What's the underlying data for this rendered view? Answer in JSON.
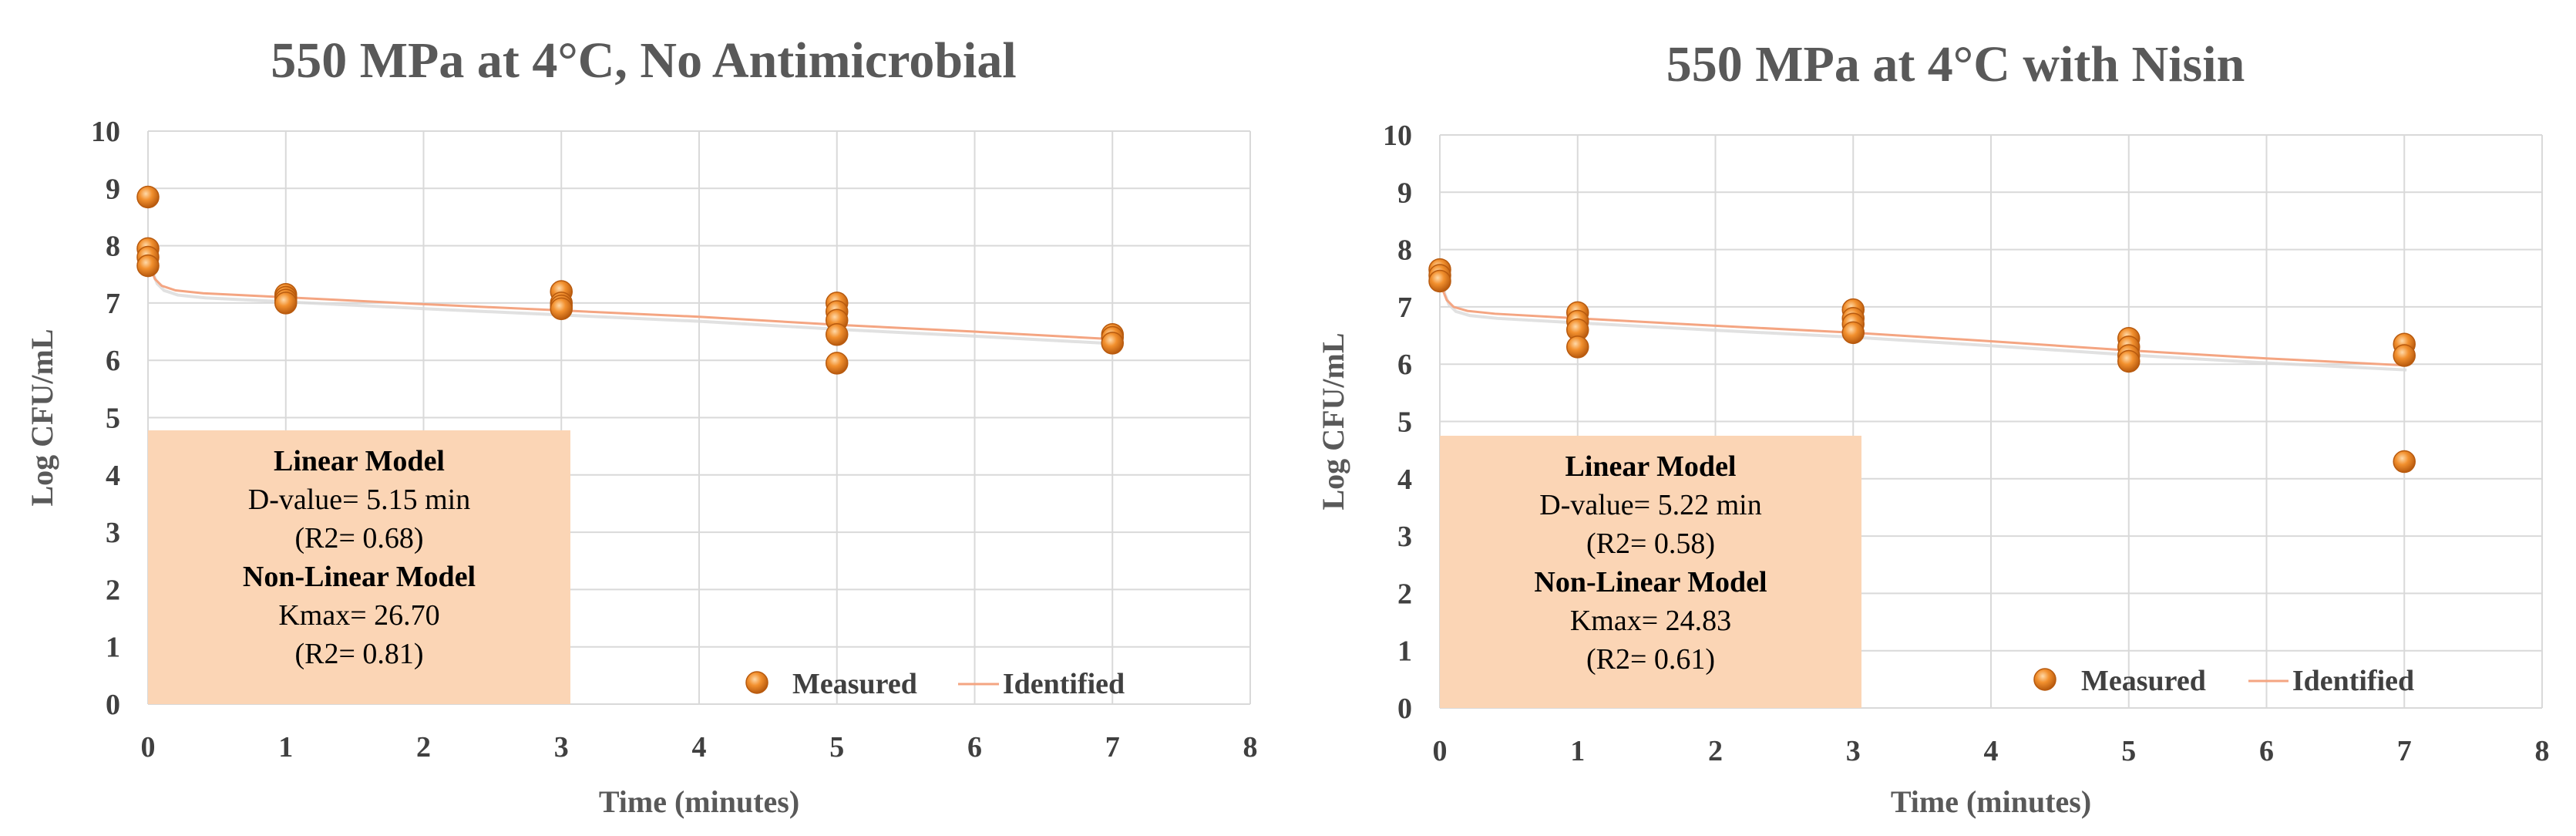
{
  "colors": {
    "marker_fill": "#E07A1E",
    "marker_stroke": "#B85A0E",
    "line": "#F4A582",
    "line_shadow": "#D9D9D9",
    "grid": "#D9D9D9",
    "annotation_bg": "#FBD5B5",
    "text": "#404040"
  },
  "chart_data": [
    {
      "type": "scatter",
      "title": "550 MPa at 4°C, No Antimicrobial",
      "xlabel": "Time (minutes)",
      "ylabel": "Log CFU/mL",
      "xlim": [
        0,
        8
      ],
      "ylim": [
        0,
        10
      ],
      "xticks": [
        0,
        1,
        2,
        3,
        4,
        5,
        6,
        7,
        8
      ],
      "yticks": [
        0,
        1,
        2,
        3,
        4,
        5,
        6,
        7,
        8,
        9,
        10
      ],
      "grid": true,
      "legend_position": "bottom-right",
      "series": [
        {
          "name": "Measured",
          "kind": "points",
          "x": [
            0,
            0,
            0,
            0,
            1,
            1,
            1,
            1,
            3,
            3,
            3,
            3,
            5,
            5,
            5,
            5,
            5,
            7,
            7,
            7
          ],
          "y": [
            8.85,
            7.95,
            7.8,
            7.65,
            7.15,
            7.1,
            7.05,
            7.0,
            7.2,
            7.0,
            6.95,
            6.9,
            7.0,
            6.85,
            6.7,
            6.45,
            5.95,
            6.45,
            6.4,
            6.3
          ]
        },
        {
          "name": "Identified",
          "kind": "line",
          "x": [
            0,
            0.02,
            0.05,
            0.1,
            0.2,
            0.4,
            1,
            2,
            3,
            4,
            5,
            6,
            7
          ],
          "y": [
            7.85,
            7.6,
            7.42,
            7.3,
            7.22,
            7.17,
            7.1,
            6.98,
            6.87,
            6.76,
            6.62,
            6.5,
            6.37
          ]
        }
      ],
      "annotation": {
        "lines": [
          {
            "text": "Linear Model",
            "bold": true
          },
          {
            "text": "D-value=  5.15 min",
            "bold": false
          },
          {
            "text": "(R2= 0.68)",
            "bold": false
          },
          {
            "text": "Non-Linear Model",
            "bold": true
          },
          {
            "text": "Kmax= 26.70",
            "bold": false
          },
          {
            "text": "(R2= 0.81)",
            "bold": false
          }
        ]
      }
    },
    {
      "type": "scatter",
      "title": "550 MPa at 4°C with Nisin",
      "xlabel": "Time (minutes)",
      "ylabel": "Log CFU/mL",
      "xlim": [
        0,
        8
      ],
      "ylim": [
        0,
        10
      ],
      "xticks": [
        0,
        1,
        2,
        3,
        4,
        5,
        6,
        7,
        8
      ],
      "yticks": [
        0,
        1,
        2,
        3,
        4,
        5,
        6,
        7,
        8,
        9,
        10
      ],
      "grid": true,
      "legend_position": "bottom-right",
      "series": [
        {
          "name": "Measured",
          "kind": "points",
          "x": [
            0,
            0,
            0,
            1,
            1,
            1,
            1,
            3,
            3,
            3,
            3,
            5,
            5,
            5,
            5,
            7,
            7,
            7
          ],
          "y": [
            7.65,
            7.55,
            7.45,
            6.9,
            6.75,
            6.6,
            6.3,
            6.95,
            6.8,
            6.7,
            6.55,
            6.45,
            6.3,
            6.15,
            6.05,
            6.35,
            6.15,
            4.3
          ]
        },
        {
          "name": "Identified",
          "kind": "line",
          "x": [
            0,
            0.02,
            0.05,
            0.1,
            0.2,
            0.4,
            1,
            2,
            3,
            4,
            5,
            6,
            7
          ],
          "y": [
            7.55,
            7.3,
            7.12,
            7.0,
            6.93,
            6.88,
            6.8,
            6.67,
            6.55,
            6.4,
            6.24,
            6.1,
            5.98
          ]
        }
      ],
      "annotation": {
        "lines": [
          {
            "text": "Linear Model",
            "bold": true
          },
          {
            "text": "D-value=  5.22 min",
            "bold": false
          },
          {
            "text": "(R2= 0.58)",
            "bold": false
          },
          {
            "text": "Non-Linear Model",
            "bold": true
          },
          {
            "text": "Kmax= 24.83",
            "bold": false
          },
          {
            "text": "(R2= 0.61)",
            "bold": false
          }
        ]
      }
    }
  ]
}
